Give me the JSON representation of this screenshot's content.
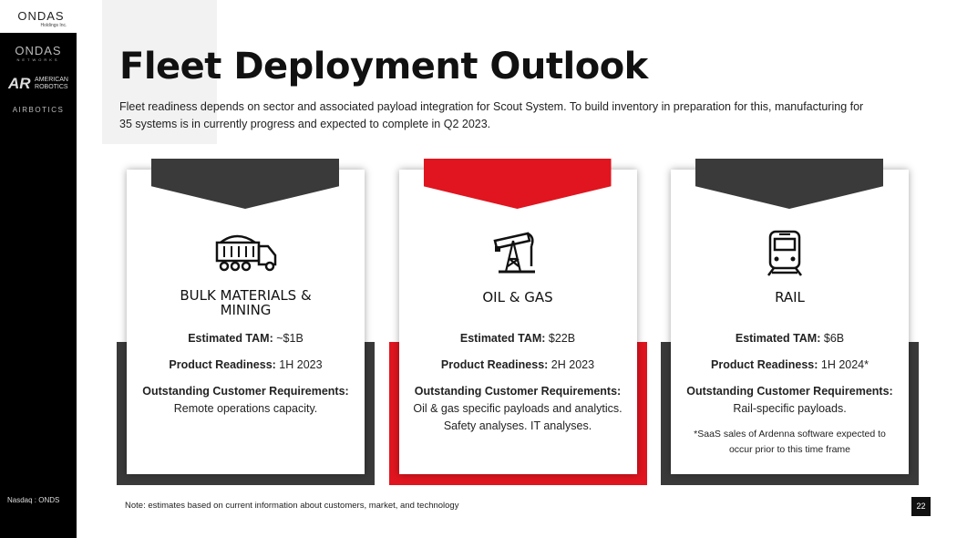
{
  "logo": {
    "name": "ONDAS",
    "sub": "Holdings Inc."
  },
  "sidebar": {
    "brands": [
      {
        "name": "ONDAS",
        "sub": "NETWORKS"
      },
      {
        "mark": "AR",
        "name": "AMERICAN",
        "sub": "ROBOTICS"
      },
      {
        "name": "AIRBOTICS"
      }
    ],
    "ticker": "Nasdaq : ONDS"
  },
  "header": {
    "title": "Fleet Deployment Outlook",
    "subtitle": "Fleet readiness depends on sector and associated payload integration for Scout System. To build inventory in preparation for this, manufacturing for 35 systems is in currently progress and expected to complete in Q2 2023."
  },
  "cards": [
    {
      "heading": "BULK MATERIALS & MINING",
      "items": [
        {
          "label": "Estimated TAM:",
          "value": "~$1B"
        },
        {
          "label": "Product Readiness:",
          "value": "1H 2023"
        },
        {
          "label": "Outstanding Customer Requirements:",
          "value": "Remote operations capacity."
        }
      ]
    },
    {
      "heading": "OIL & GAS",
      "items": [
        {
          "label": "Estimated TAM:",
          "value": "$22B"
        },
        {
          "label": "Product Readiness:",
          "value": "2H 2023"
        },
        {
          "label": "Outstanding Customer Requirements:",
          "value": "Oil & gas specific payloads and analytics. Safety analyses. IT analyses."
        }
      ]
    },
    {
      "heading": "RAIL",
      "items": [
        {
          "label": "Estimated TAM:",
          "value": "$6B"
        },
        {
          "label": "Product Readiness:",
          "value": "1H 2024*"
        },
        {
          "label": "Outstanding Customer Requirements:",
          "value": "Rail-specific payloads."
        }
      ],
      "footnote": "*SaaS sales of Ardenna software expected to occur prior to this time frame"
    }
  ],
  "footer": {
    "note": "Note: estimates based on current information about customers, market, and technology",
    "page": "22"
  }
}
